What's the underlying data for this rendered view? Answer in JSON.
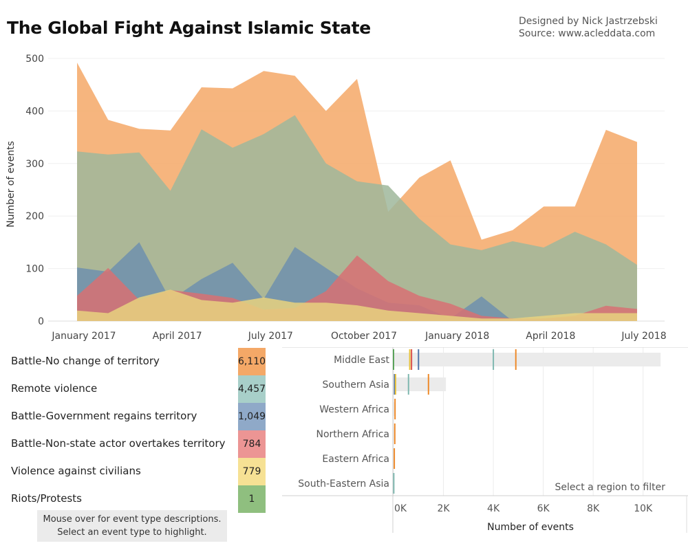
{
  "header": {
    "title": "The Global Fight Against Islamic State",
    "credit_designer": "Designed by Nick Jastrzebski",
    "credit_source": "Source: www.acleddata.com"
  },
  "chart_data": [
    {
      "type": "area",
      "ylabel": "Number of events",
      "ylim": [
        0,
        500
      ],
      "yticks": [
        0,
        100,
        200,
        300,
        400,
        500
      ],
      "x": [
        "2017-01",
        "2017-02",
        "2017-03",
        "2017-04",
        "2017-05",
        "2017-06",
        "2017-07",
        "2017-08",
        "2017-09",
        "2017-10",
        "2017-11",
        "2017-12",
        "2018-01",
        "2018-02",
        "2018-03",
        "2018-04",
        "2018-05",
        "2018-06",
        "2018-07"
      ],
      "xtick_labels": [
        "January 2017",
        "April 2017",
        "July 2017",
        "October 2017",
        "January 2018",
        "April 2018",
        "July 2018"
      ],
      "xtick_months": [
        "2017-01",
        "2017-04",
        "2017-07",
        "2017-10",
        "2018-01",
        "2018-04",
        "2018-07"
      ],
      "series": [
        {
          "name": "Battle-No change of territory",
          "color": "#f4a867",
          "values": [
            492,
            383,
            366,
            363,
            445,
            443,
            476,
            467,
            400,
            461,
            208,
            273,
            306,
            155,
            173,
            218,
            218,
            364,
            341
          ]
        },
        {
          "name": "Remote violence",
          "color": "#9fb79b",
          "values": [
            323,
            317,
            321,
            248,
            365,
            330,
            356,
            392,
            300,
            266,
            258,
            195,
            146,
            135,
            152,
            140,
            170,
            146,
            107
          ]
        },
        {
          "name": "Battle-Government regains territory",
          "color": "#6f91ad",
          "values": [
            102,
            94,
            150,
            40,
            80,
            111,
            42,
            141,
            101,
            62,
            35,
            30,
            5,
            47,
            0,
            5,
            8,
            5,
            0
          ]
        },
        {
          "name": "Battle-Non-state actor overtakes territory",
          "color": "#d77173",
          "values": [
            48,
            101,
            40,
            59,
            52,
            44,
            22,
            25,
            57,
            125,
            76,
            48,
            33,
            10,
            5,
            5,
            10,
            29,
            23
          ]
        },
        {
          "name": "Violence against civilians",
          "color": "#e8d27f",
          "values": [
            20,
            15,
            45,
            60,
            40,
            35,
            45,
            35,
            35,
            30,
            20,
            15,
            10,
            5,
            5,
            10,
            15,
            15,
            15
          ]
        },
        {
          "name": "Riots/Protests",
          "color": "#8fbf7f",
          "values": [
            0,
            0,
            0,
            0,
            0,
            0,
            0,
            0,
            0,
            0,
            0,
            0,
            0,
            0,
            0,
            0,
            0,
            0,
            0
          ]
        }
      ]
    },
    {
      "type": "bar",
      "xlabel": "Number of events",
      "xlim": [
        0,
        11000
      ],
      "xticks": [
        0,
        2000,
        4000,
        6000,
        8000,
        10000
      ],
      "xtick_labels": [
        "0K",
        "2K",
        "4K",
        "6K",
        "8K",
        "10K"
      ],
      "categories": [
        "Middle East",
        "Southern Asia",
        "Western Africa",
        "Northern Africa",
        "Eastern Africa",
        "South-Eastern Asia"
      ],
      "values": [
        10700,
        2100,
        40,
        35,
        25,
        10
      ],
      "bar_color": "#ebebeb",
      "markers": [
        {
          "region": "Middle East",
          "values": [
            {
              "event": "Riots/Protests",
              "value": 0
            },
            {
              "event": "Violence against civilians",
              "value": 650
            },
            {
              "event": "Battle-Non-state actor overtakes territory",
              "value": 720
            },
            {
              "event": "Battle-Government regains territory",
              "value": 1000
            },
            {
              "event": "Remote violence",
              "value": 4000
            },
            {
              "event": "Battle-No change of territory",
              "value": 4900
            }
          ]
        },
        {
          "region": "Southern Asia",
          "values": [
            {
              "event": "Battle-Government regains territory",
              "value": 40
            },
            {
              "event": "Violence against civilians",
              "value": 80
            },
            {
              "event": "Remote violence",
              "value": 600
            },
            {
              "event": "Battle-No change of territory",
              "value": 1400
            }
          ]
        },
        {
          "region": "Western Africa",
          "values": [
            {
              "event": "Battle-No change of territory",
              "value": 60
            }
          ]
        },
        {
          "region": "Northern Africa",
          "values": [
            {
              "event": "Battle-No change of territory",
              "value": 50
            }
          ]
        },
        {
          "region": "Eastern Africa",
          "values": [
            {
              "event": "Battle-No change of territory",
              "value": 30
            }
          ]
        },
        {
          "region": "South-Eastern Asia",
          "values": [
            {
              "event": "Remote violence",
              "value": 10
            }
          ]
        }
      ]
    }
  ],
  "legend": {
    "items": [
      {
        "label": "Battle-No change of territory",
        "count": "6,110",
        "color": "#f4a867"
      },
      {
        "label": "Remote violence",
        "count": "4,457",
        "color": "#a8cfc9"
      },
      {
        "label": "Battle-Government regains territory",
        "count": "1,049",
        "color": "#8fa9c8"
      },
      {
        "label": "Battle-Non-state actor overtakes territory",
        "count": "784",
        "color": "#ec9594"
      },
      {
        "label": "Violence against civilians",
        "count": "779",
        "color": "#f6e194"
      },
      {
        "label": "Riots/Protests",
        "count": "1",
        "color": "#8fbf7f"
      }
    ],
    "hint_line1": "Mouse over for event type descriptions.",
    "hint_line2": "Select an event type to highlight."
  },
  "filter_hint": "Select a region to filter"
}
